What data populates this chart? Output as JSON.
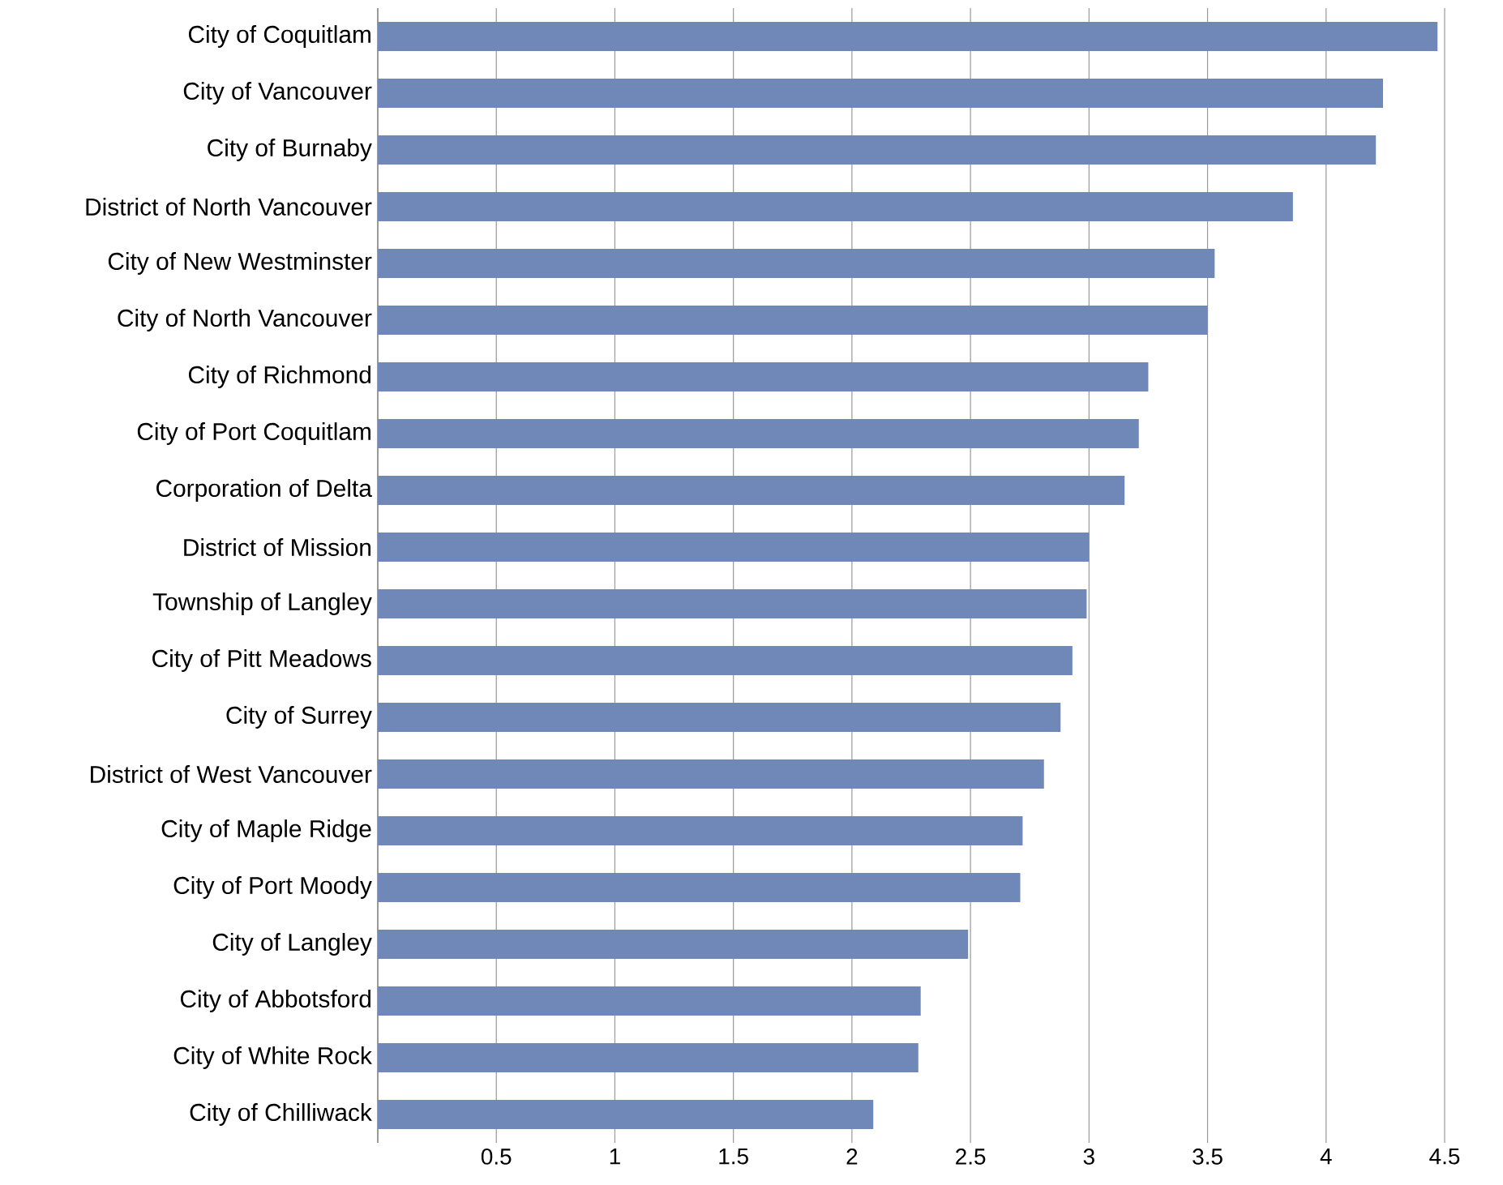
{
  "chart_data": {
    "type": "bar",
    "orientation": "horizontal",
    "color": "#6f88b8",
    "categories": [
      "City of Coquitlam",
      "City of Vancouver",
      "City of Burnaby",
      "District of North Vancouver",
      "City of New Westminster",
      "City of North Vancouver",
      "City of Richmond",
      "City of Port Coquitlam",
      "Corporation of Delta",
      "District of Mission",
      "Township of Langley",
      "City of Pitt Meadows",
      "City of Surrey",
      "District of West Vancouver",
      "City of Maple Ridge",
      "City of Port Moody",
      "City of Langley",
      "City of Abbotsford",
      "City of White Rock",
      "City of Chilliwack"
    ],
    "values": [
      4.47,
      4.24,
      4.21,
      3.86,
      3.53,
      3.5,
      3.25,
      3.21,
      3.15,
      3.0,
      2.99,
      2.93,
      2.88,
      2.81,
      2.72,
      2.71,
      2.49,
      2.29,
      2.28,
      2.09
    ],
    "xlim": [
      0,
      4.5
    ],
    "xticks": [
      0.5,
      1,
      1.5,
      2,
      2.5,
      3,
      3.5,
      4,
      4.5
    ],
    "grid": "x"
  }
}
